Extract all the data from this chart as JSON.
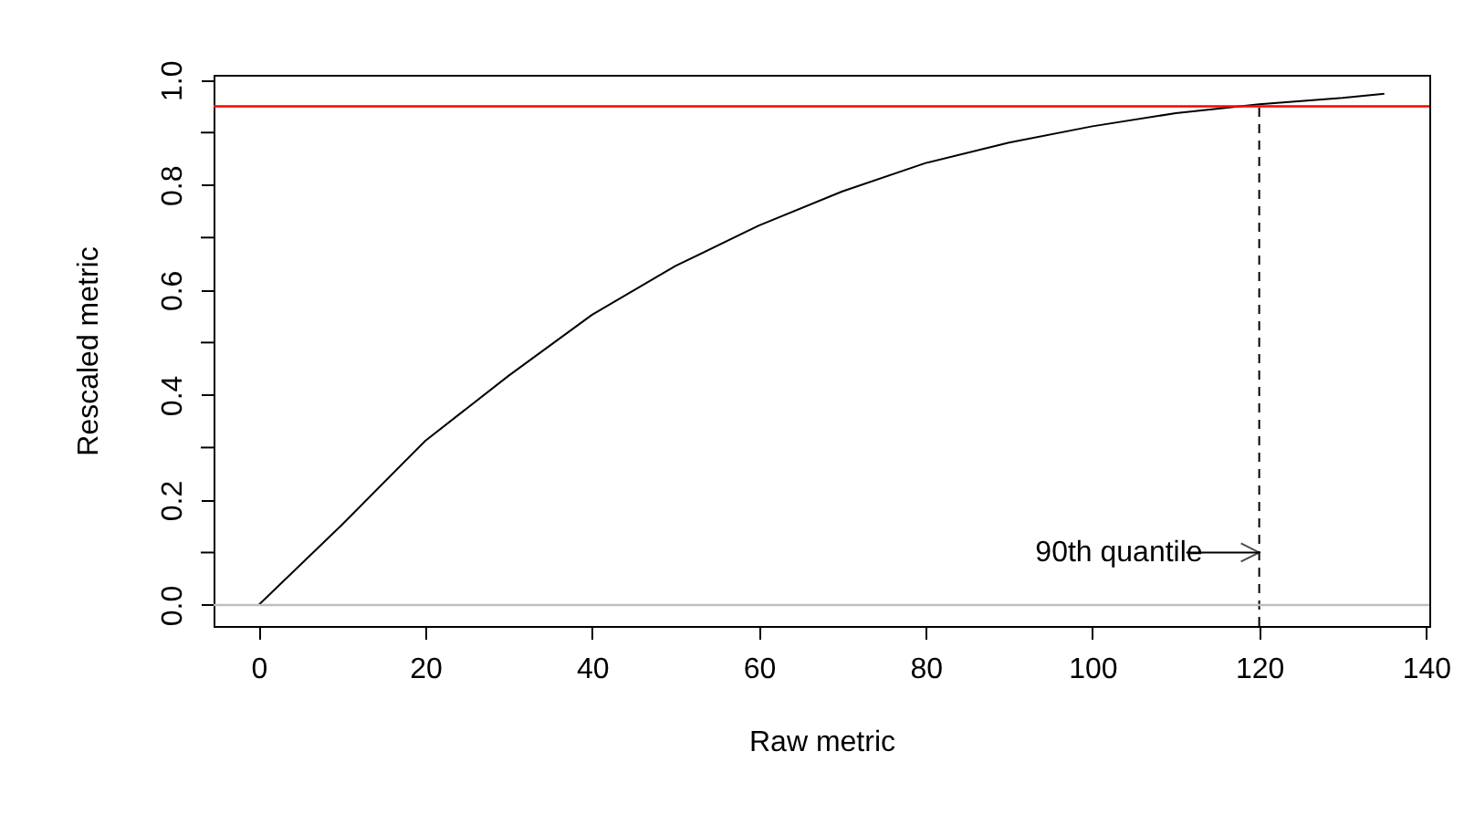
{
  "chart_data": {
    "type": "line",
    "xlabel": "Raw metric",
    "ylabel": "Rescaled metric",
    "xlim": [
      -5.4,
      140.4
    ],
    "ylim": [
      -0.04,
      1.01
    ],
    "xticks": [
      0,
      20,
      40,
      60,
      80,
      100,
      120,
      140
    ],
    "yticks": [
      {
        "value": 0,
        "label": "0.0"
      },
      {
        "value": 0.1,
        "label": null
      },
      {
        "value": 0.2,
        "label": "0.2"
      },
      {
        "value": 0.3,
        "label": null
      },
      {
        "value": 0.4,
        "label": "0.4"
      },
      {
        "value": 0.5,
        "label": null
      },
      {
        "value": 0.6,
        "label": "0.6"
      },
      {
        "value": 0.7,
        "label": null
      },
      {
        "value": 0.8,
        "label": "0.8"
      },
      {
        "value": 0.9,
        "label": null
      },
      {
        "value": 1,
        "label": "1.0"
      }
    ],
    "series": [
      {
        "color": "#000000",
        "x": [
          0,
          10,
          20,
          30,
          40,
          50,
          60,
          70,
          80,
          90,
          100,
          110,
          120,
          130,
          135
        ],
        "values": [
          0,
          0.153,
          0.313,
          0.437,
          0.553,
          0.646,
          0.723,
          0.788,
          0.842,
          0.881,
          0.912,
          0.937,
          0.954,
          0.966,
          0.974
        ]
      },
      {
        "color": "#000000",
        "line_style": "dashed",
        "x": [
          120,
          120
        ],
        "values": [
          -0.04,
          0.95
        ]
      }
    ],
    "ref_lines": [
      {
        "axis": "y",
        "value": 0.95,
        "color": "#ff0000"
      },
      {
        "axis": "y",
        "value": 0,
        "color": "#bebebe"
      }
    ],
    "annotations": [
      {
        "text": "90th quantile",
        "x": 120,
        "y": 0.1
      }
    ],
    "grid": false,
    "marker": "none",
    "line_style": "solid"
  }
}
